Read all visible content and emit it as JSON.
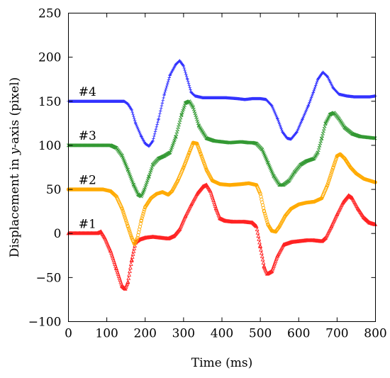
{
  "chart_data": {
    "type": "line",
    "xlabel": "Time (ms)",
    "ylabel_prefix": "Displacement in ",
    "ylabel_var": "y",
    "ylabel_suffix": "-axis (pixel)",
    "xlim": [
      0,
      800
    ],
    "ylim": [
      -100,
      250
    ],
    "xticks": [
      0,
      100,
      200,
      300,
      400,
      500,
      600,
      700,
      800
    ],
    "yticks": [
      -100,
      -50,
      0,
      50,
      100,
      150,
      200,
      250
    ],
    "ytick_labels": [
      "−100",
      "−50",
      "0",
      "50",
      "100",
      "150",
      "200",
      "250"
    ],
    "grid": false,
    "series": [
      {
        "name": "#1",
        "color": "#ff2222",
        "marker": "triangle",
        "label_at": [
          30,
          3
        ],
        "points": [
          [
            0,
            0
          ],
          [
            30,
            0
          ],
          [
            60,
            0
          ],
          [
            75,
            0
          ],
          [
            85,
            2
          ],
          [
            95,
            -5
          ],
          [
            110,
            -20
          ],
          [
            125,
            -40
          ],
          [
            140,
            -60
          ],
          [
            148,
            -63
          ],
          [
            155,
            -55
          ],
          [
            165,
            -30
          ],
          [
            175,
            -10
          ],
          [
            185,
            -7
          ],
          [
            200,
            -5
          ],
          [
            220,
            -4
          ],
          [
            240,
            -5
          ],
          [
            260,
            -6
          ],
          [
            275,
            -3
          ],
          [
            290,
            5
          ],
          [
            305,
            20
          ],
          [
            320,
            33
          ],
          [
            335,
            45
          ],
          [
            350,
            53
          ],
          [
            360,
            55
          ],
          [
            370,
            48
          ],
          [
            385,
            28
          ],
          [
            395,
            17
          ],
          [
            410,
            14
          ],
          [
            430,
            13
          ],
          [
            460,
            13
          ],
          [
            480,
            12
          ],
          [
            490,
            8
          ],
          [
            500,
            -15
          ],
          [
            510,
            -38
          ],
          [
            518,
            -46
          ],
          [
            530,
            -43
          ],
          [
            545,
            -25
          ],
          [
            560,
            -13
          ],
          [
            580,
            -10
          ],
          [
            600,
            -9
          ],
          [
            620,
            -8
          ],
          [
            640,
            -8
          ],
          [
            660,
            -9
          ],
          [
            670,
            -5
          ],
          [
            685,
            8
          ],
          [
            700,
            22
          ],
          [
            715,
            35
          ],
          [
            730,
            43
          ],
          [
            740,
            40
          ],
          [
            755,
            28
          ],
          [
            770,
            18
          ],
          [
            785,
            12
          ],
          [
            800,
            10
          ]
        ]
      },
      {
        "name": "#2",
        "color": "#ffaa00",
        "marker": "circle",
        "label_at": [
          30,
          53
        ],
        "points": [
          [
            0,
            50
          ],
          [
            30,
            50
          ],
          [
            60,
            50
          ],
          [
            90,
            50
          ],
          [
            110,
            48
          ],
          [
            125,
            42
          ],
          [
            140,
            28
          ],
          [
            155,
            8
          ],
          [
            165,
            -5
          ],
          [
            172,
            -12
          ],
          [
            180,
            -5
          ],
          [
            190,
            15
          ],
          [
            200,
            30
          ],
          [
            215,
            40
          ],
          [
            230,
            45
          ],
          [
            245,
            47
          ],
          [
            260,
            44
          ],
          [
            270,
            48
          ],
          [
            285,
            60
          ],
          [
            300,
            75
          ],
          [
            315,
            92
          ],
          [
            325,
            103
          ],
          [
            335,
            102
          ],
          [
            345,
            90
          ],
          [
            360,
            72
          ],
          [
            375,
            60
          ],
          [
            395,
            56
          ],
          [
            420,
            55
          ],
          [
            450,
            56
          ],
          [
            470,
            57
          ],
          [
            480,
            56
          ],
          [
            490,
            55
          ],
          [
            500,
            45
          ],
          [
            510,
            25
          ],
          [
            520,
            10
          ],
          [
            530,
            3
          ],
          [
            540,
            2
          ],
          [
            550,
            8
          ],
          [
            565,
            20
          ],
          [
            580,
            28
          ],
          [
            600,
            33
          ],
          [
            620,
            35
          ],
          [
            640,
            36
          ],
          [
            660,
            40
          ],
          [
            675,
            55
          ],
          [
            690,
            75
          ],
          [
            700,
            88
          ],
          [
            708,
            90
          ],
          [
            720,
            85
          ],
          [
            735,
            75
          ],
          [
            750,
            68
          ],
          [
            770,
            62
          ],
          [
            785,
            60
          ],
          [
            800,
            58
          ]
        ]
      },
      {
        "name": "#3",
        "color": "#339933",
        "marker": "cross",
        "label_at": [
          30,
          103
        ],
        "points": [
          [
            0,
            100
          ],
          [
            40,
            100
          ],
          [
            80,
            100
          ],
          [
            110,
            100
          ],
          [
            125,
            97
          ],
          [
            140,
            88
          ],
          [
            155,
            72
          ],
          [
            170,
            55
          ],
          [
            182,
            44
          ],
          [
            190,
            42
          ],
          [
            198,
            50
          ],
          [
            210,
            65
          ],
          [
            220,
            78
          ],
          [
            235,
            85
          ],
          [
            250,
            88
          ],
          [
            265,
            92
          ],
          [
            280,
            110
          ],
          [
            295,
            135
          ],
          [
            305,
            148
          ],
          [
            315,
            150
          ],
          [
            325,
            143
          ],
          [
            340,
            122
          ],
          [
            360,
            108
          ],
          [
            380,
            105
          ],
          [
            400,
            104
          ],
          [
            420,
            103
          ],
          [
            450,
            104
          ],
          [
            470,
            103
          ],
          [
            480,
            103
          ],
          [
            490,
            102
          ],
          [
            505,
            95
          ],
          [
            520,
            80
          ],
          [
            535,
            65
          ],
          [
            550,
            55
          ],
          [
            560,
            55
          ],
          [
            575,
            60
          ],
          [
            590,
            70
          ],
          [
            605,
            78
          ],
          [
            620,
            82
          ],
          [
            640,
            85
          ],
          [
            650,
            92
          ],
          [
            660,
            108
          ],
          [
            670,
            125
          ],
          [
            682,
            135
          ],
          [
            692,
            137
          ],
          [
            705,
            130
          ],
          [
            720,
            120
          ],
          [
            740,
            113
          ],
          [
            760,
            110
          ],
          [
            780,
            109
          ],
          [
            800,
            108
          ]
        ]
      },
      {
        "name": "#4",
        "color": "#3333ff",
        "marker": "plus",
        "label_at": [
          30,
          153
        ],
        "points": [
          [
            0,
            150
          ],
          [
            30,
            150
          ],
          [
            60,
            150
          ],
          [
            90,
            150
          ],
          [
            110,
            150
          ],
          [
            130,
            150
          ],
          [
            145,
            150
          ],
          [
            155,
            147
          ],
          [
            165,
            140
          ],
          [
            175,
            125
          ],
          [
            190,
            110
          ],
          [
            200,
            102
          ],
          [
            210,
            99
          ],
          [
            220,
            105
          ],
          [
            235,
            130
          ],
          [
            250,
            158
          ],
          [
            265,
            180
          ],
          [
            280,
            192
          ],
          [
            290,
            196
          ],
          [
            300,
            190
          ],
          [
            310,
            175
          ],
          [
            320,
            160
          ],
          [
            330,
            156
          ],
          [
            350,
            154
          ],
          [
            380,
            154
          ],
          [
            410,
            154
          ],
          [
            440,
            153
          ],
          [
            460,
            152
          ],
          [
            480,
            153
          ],
          [
            500,
            153
          ],
          [
            515,
            152
          ],
          [
            530,
            145
          ],
          [
            545,
            130
          ],
          [
            558,
            115
          ],
          [
            570,
            108
          ],
          [
            580,
            107
          ],
          [
            595,
            115
          ],
          [
            610,
            130
          ],
          [
            625,
            145
          ],
          [
            638,
            160
          ],
          [
            650,
            175
          ],
          [
            663,
            183
          ],
          [
            675,
            178
          ],
          [
            690,
            165
          ],
          [
            705,
            158
          ],
          [
            725,
            156
          ],
          [
            745,
            155
          ],
          [
            765,
            155
          ],
          [
            785,
            155
          ],
          [
            800,
            156
          ]
        ]
      }
    ]
  }
}
